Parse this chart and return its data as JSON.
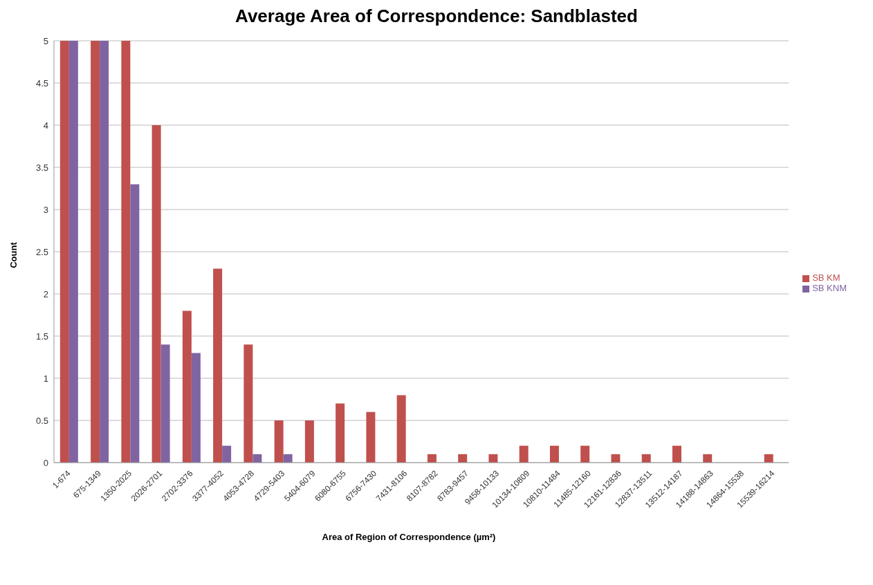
{
  "chart_data": {
    "type": "bar",
    "title": "Average Area of Correspondence: Sandblasted",
    "xlabel": "Area of Region of Correspondence (µm²)",
    "ylabel": "Count",
    "categories": [
      "1-674",
      "675-1349",
      "1350-2025",
      "2026-2701",
      "2702-3376",
      "3377-4052",
      "4053-4728",
      "4729-5403",
      "5404-6079",
      "6080-6755",
      "6756-7430",
      "7431-8106",
      "8107-8782",
      "8783-9457",
      "9458-10133",
      "10134-10809",
      "10810-11484",
      "11485-12160",
      "12161-12836",
      "12837-13511",
      "13512-14187",
      "14188-14863",
      "14864-15538",
      "15539-16214"
    ],
    "series": [
      {
        "name": "SB KM",
        "color": "#c0504d",
        "values": [
          5,
          5,
          5,
          4,
          1.8,
          2.3,
          1.4,
          0.5,
          0.5,
          0.7,
          0.6,
          0.8,
          0.1,
          0.1,
          0.1,
          0.2,
          0.2,
          0.2,
          0.1,
          0.1,
          0.2,
          0.1,
          0,
          0.1
        ]
      },
      {
        "name": "SB KNM",
        "color": "#8064a2",
        "values": [
          5,
          5,
          3.3,
          1.4,
          1.3,
          0.2,
          0.1,
          0.1,
          0,
          0,
          0,
          0,
          0,
          0,
          0,
          0,
          0,
          0,
          0,
          0,
          0,
          0,
          0,
          0
        ]
      }
    ],
    "ylim": [
      0,
      5
    ],
    "yticks": [
      0,
      0.5,
      1,
      1.5,
      2,
      2.5,
      3,
      3.5,
      4,
      4.5,
      5
    ],
    "grid": "y",
    "legend": "right"
  }
}
